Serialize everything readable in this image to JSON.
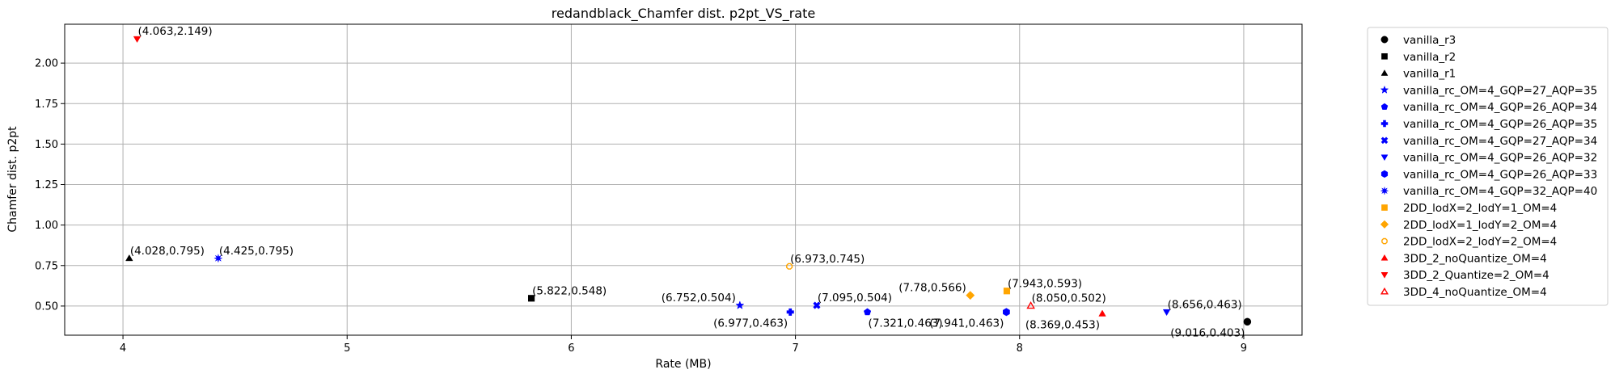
{
  "chart_data": {
    "type": "scatter",
    "title": "redandblack_Chamfer dist. p2pt_VS_rate",
    "xlabel": "Rate (MB)",
    "ylabel": "Chamfer dist. p2pt",
    "xlim": [
      3.74,
      9.26
    ],
    "ylim": [
      0.32,
      2.24
    ],
    "x_ticks": [
      4,
      5,
      6,
      7,
      8,
      9
    ],
    "x_tick_labels": [
      "4",
      "5",
      "6",
      "7",
      "8",
      "9"
    ],
    "y_ticks": [
      0.5,
      0.75,
      1.0,
      1.25,
      1.5,
      1.75,
      2.0
    ],
    "y_tick_labels": [
      "0.50",
      "0.75",
      "1.00",
      "1.25",
      "1.50",
      "1.75",
      "2.00"
    ],
    "grid": true,
    "legend_position": "outside-right",
    "series": [
      {
        "name": "vanilla_r3",
        "color": "#000000",
        "marker": "circle",
        "x": 9.016,
        "y": 0.403,
        "label": "(9.016,0.403)",
        "label_pos": "below-left"
      },
      {
        "name": "vanilla_r2",
        "color": "#000000",
        "marker": "square",
        "x": 5.822,
        "y": 0.548,
        "label": "(5.822,0.548)",
        "label_pos": "above-right"
      },
      {
        "name": "vanilla_r1",
        "color": "#000000",
        "marker": "triangle-up",
        "x": 4.028,
        "y": 0.795,
        "label": "(4.028,0.795)",
        "label_pos": "above-right"
      },
      {
        "name": "vanilla_rc_OM=4_GQP=27_AQP=35",
        "color": "#0000ff",
        "marker": "star",
        "x": 6.752,
        "y": 0.504,
        "label": "(6.752,0.504)",
        "label_pos": "above-left"
      },
      {
        "name": "vanilla_rc_OM=4_GQP=26_AQP=34",
        "color": "#0000ff",
        "marker": "pentagon",
        "x": 7.321,
        "y": 0.463,
        "label": "(7.321,0.463)",
        "label_pos": "below-right"
      },
      {
        "name": "vanilla_rc_OM=4_GQP=26_AQP=35",
        "color": "#0000ff",
        "marker": "plus",
        "x": 6.977,
        "y": 0.463,
        "label": "(6.977,0.463)",
        "label_pos": "below-left"
      },
      {
        "name": "vanilla_rc_OM=4_GQP=27_AQP=34",
        "color": "#0000ff",
        "marker": "x",
        "x": 7.095,
        "y": 0.504,
        "label": "(7.095,0.504)",
        "label_pos": "above-right"
      },
      {
        "name": "vanilla_rc_OM=4_GQP=26_AQP=32",
        "color": "#0000ff",
        "marker": "triangle-down",
        "x": 8.656,
        "y": 0.463,
        "label": "(8.656,0.463)",
        "label_pos": "above-right"
      },
      {
        "name": "vanilla_rc_OM=4_GQP=26_AQP=33",
        "color": "#0000ff",
        "marker": "hexagon",
        "x": 7.941,
        "y": 0.463,
        "label": "(7.941,0.463)",
        "label_pos": "below-left"
      },
      {
        "name": "vanilla_rc_OM=4_GQP=32_AQP=40",
        "color": "#0000ff",
        "marker": "burst",
        "x": 4.425,
        "y": 0.795,
        "label": "(4.425,0.795)",
        "label_pos": "above-right"
      },
      {
        "name": "2DD_lodX=2_lodY=1_OM=4",
        "color": "#ffa500",
        "marker": "square",
        "x": 7.943,
        "y": 0.593,
        "label": "(7.943,0.593)",
        "label_pos": "above-right"
      },
      {
        "name": "2DD_lodX=1_lodY=2_OM=4",
        "color": "#ffa500",
        "marker": "diamond",
        "x": 7.78,
        "y": 0.566,
        "label": "(7.78,0.566)",
        "label_pos": "above-left"
      },
      {
        "name": "2DD_lodX=2_lodY=2_OM=4",
        "color": "#ffa500",
        "marker": "octagon-open",
        "x": 6.973,
        "y": 0.745,
        "label": "(6.973,0.745)",
        "label_pos": "above-right"
      },
      {
        "name": "3DD_2_noQuantize_OM=4",
        "color": "#ff0000",
        "marker": "triangle-up",
        "x": 8.369,
        "y": 0.453,
        "label": "(8.369,0.453)",
        "label_pos": "below-left"
      },
      {
        "name": "3DD_2_Quantize=2_OM=4",
        "color": "#ff0000",
        "marker": "triangle-down",
        "x": 4.063,
        "y": 2.149,
        "label": "(4.063,2.149)",
        "label_pos": "above-right"
      },
      {
        "name": "3DD_4_noQuantize_OM=4",
        "color": "#ff0000",
        "marker": "triangle-up-open",
        "x": 8.05,
        "y": 0.502,
        "label": "(8.050,0.502)",
        "label_pos": "above-right"
      }
    ]
  }
}
